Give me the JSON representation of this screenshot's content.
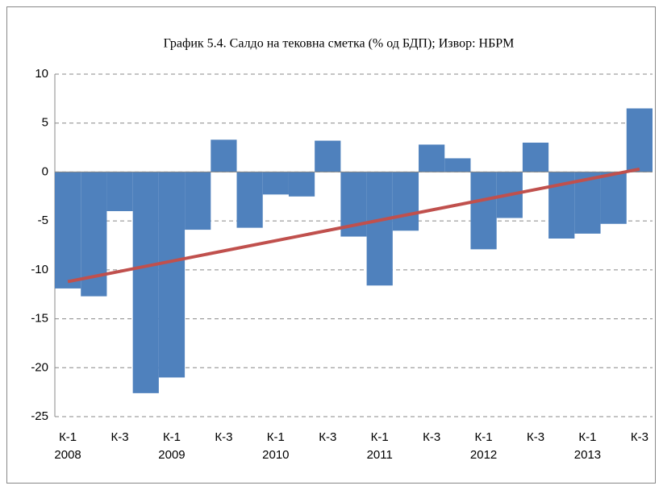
{
  "chart_data": {
    "type": "bar",
    "title": "График 5.4. Салдо на тековна сметка (% од БДП); Извор: НБРМ",
    "categories": [
      "К-1",
      null,
      "К-3",
      null,
      "К-1",
      null,
      "К-3",
      null,
      "К-1",
      null,
      "К-3",
      null,
      "К-1",
      null,
      "К-3",
      null,
      "К-1",
      null,
      "К-3",
      null,
      "К-1",
      null,
      "К-3"
    ],
    "category_years": [
      "2008",
      null,
      null,
      null,
      "2009",
      null,
      null,
      null,
      "2010",
      null,
      null,
      null,
      "2011",
      null,
      null,
      null,
      "2012",
      null,
      null,
      null,
      "2013",
      null,
      null
    ],
    "values": [
      -11.9,
      -12.7,
      -4.0,
      -22.6,
      -21.0,
      -5.9,
      3.3,
      -5.7,
      -2.3,
      -2.5,
      3.2,
      -6.6,
      -11.6,
      -6.0,
      2.8,
      1.4,
      -7.9,
      -4.7,
      3.0,
      -6.8,
      -6.3,
      -5.3,
      6.5
    ],
    "color": "#4f81bd",
    "trend": {
      "color": "#c0504d",
      "start": -11.2,
      "end": 0.3
    },
    "ylim": [
      -25,
      10
    ],
    "yticks": [
      -25,
      -20,
      -15,
      -10,
      -5,
      0,
      5,
      10
    ],
    "grid": true
  }
}
